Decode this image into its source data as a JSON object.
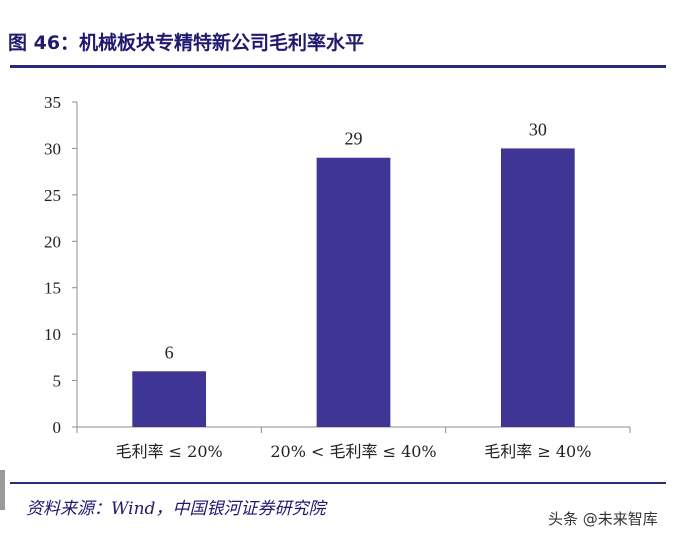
{
  "figure": {
    "title": "图 46：机械板块专精特新公司毛利率水平",
    "source": "资料来源：Wind，中国银河证券研究院",
    "watermark": "头条 @未来智库"
  },
  "colors": {
    "bar": "#3f3594",
    "title": "#1f1a6e",
    "rule": "#2a2a7a",
    "axis": "#8c8c8c"
  },
  "chart_data": {
    "type": "bar",
    "title": "图 46：机械板块专精特新公司毛利率水平",
    "xlabel": "",
    "ylabel": "",
    "categories": [
      "毛利率 ≤ 20%",
      "20% < 毛利率 ≤ 40%",
      "毛利率 ≥ 40%"
    ],
    "values": [
      6,
      29,
      30
    ],
    "ylim": [
      0,
      35
    ],
    "yticks": [
      0,
      5,
      10,
      15,
      20,
      25,
      30,
      35
    ],
    "grid": false,
    "legend": "none",
    "data_labels": true
  }
}
